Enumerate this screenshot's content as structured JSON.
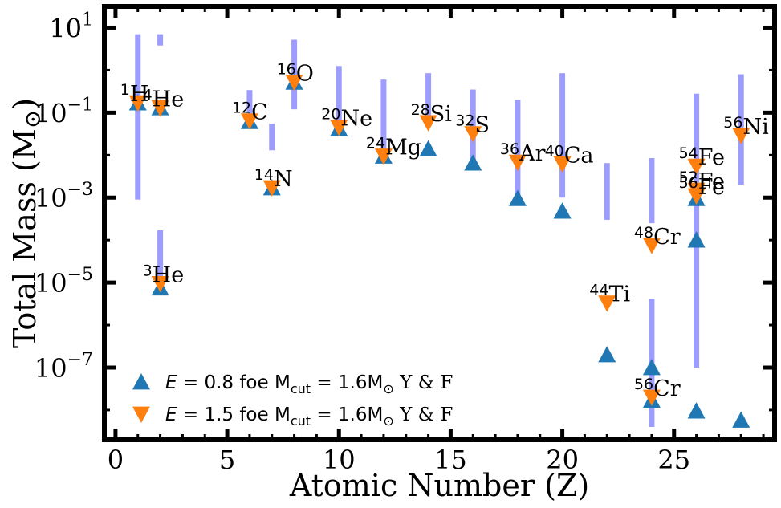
{
  "chart_data": {
    "type": "scatter",
    "xlabel": "Atomic Number (Z)",
    "ylabel": "Total Mass (M",
    "ylabel_symbol": "⊙",
    "ylabel_close": ")",
    "xlim": [
      -0.5,
      29.5
    ],
    "ylim_log10": [
      -8.7,
      1.5
    ],
    "yscale": "log",
    "x_ticks": [
      0,
      5,
      10,
      15,
      20,
      25
    ],
    "x_tick_labels": [
      "0",
      "5",
      "10",
      "15",
      "20",
      "25"
    ],
    "y_ticks_log10": [
      1,
      -1,
      -3,
      -5,
      -7
    ],
    "y_tick_labels": [
      {
        "base": "10",
        "exp": "1"
      },
      {
        "base": "10",
        "exp": "−1"
      },
      {
        "base": "10",
        "exp": "−3"
      },
      {
        "base": "10",
        "exp": "−5"
      },
      {
        "base": "10",
        "exp": "−7"
      }
    ],
    "series": [
      {
        "name_prefix": "E",
        "name_value": " = 0.8 foe M",
        "name_sub": "cut",
        "name_mid": " = 1.6M",
        "name_sub2": "⊙",
        "name_suffix": " Y & F",
        "marker": "triangle-up",
        "color": "#1f77b4",
        "points": [
          {
            "x": 1,
            "y": 0.17
          },
          {
            "x": 2,
            "y": 0.13
          },
          {
            "x": 2,
            "y": 7.5e-06
          },
          {
            "x": 6,
            "y": 0.062
          },
          {
            "x": 7,
            "y": 0.0017
          },
          {
            "x": 8,
            "y": 0.52
          },
          {
            "x": 10,
            "y": 0.042
          },
          {
            "x": 12,
            "y": 0.0095
          },
          {
            "x": 14,
            "y": 0.014
          },
          {
            "x": 16,
            "y": 0.0065
          },
          {
            "x": 18,
            "y": 0.00095
          },
          {
            "x": 20,
            "y": 0.00048
          },
          {
            "x": 22,
            "y": 2e-07
          },
          {
            "x": 24,
            "y": 1e-07
          },
          {
            "x": 24,
            "y": 1.7e-08
          },
          {
            "x": 26,
            "y": 0.00095
          },
          {
            "x": 26,
            "y": 0.0001
          },
          {
            "x": 26,
            "y": 9.5e-09
          },
          {
            "x": 28,
            "y": 5.8e-09
          }
        ]
      },
      {
        "name_prefix": "E",
        "name_value": " = 1.5 foe M",
        "name_sub": "cut",
        "name_mid": " = 1.6M",
        "name_sub2": "⊙",
        "name_suffix": " Y & F",
        "marker": "triangle-down",
        "color": "#ff7f0e",
        "points": [
          {
            "x": 1,
            "y": 0.17
          },
          {
            "x": 2,
            "y": 0.13
          },
          {
            "x": 2,
            "y": 9.5e-06
          },
          {
            "x": 6,
            "y": 0.064
          },
          {
            "x": 7,
            "y": 0.0017
          },
          {
            "x": 8,
            "y": 0.52
          },
          {
            "x": 10,
            "y": 0.045
          },
          {
            "x": 12,
            "y": 0.0095
          },
          {
            "x": 14,
            "y": 0.058
          },
          {
            "x": 16,
            "y": 0.032
          },
          {
            "x": 18,
            "y": 0.0068
          },
          {
            "x": 20,
            "y": 0.0062
          },
          {
            "x": 22,
            "y": 3.3e-06
          },
          {
            "x": 24,
            "y": 7.5e-05
          },
          {
            "x": 24,
            "y": 2e-08
          },
          {
            "x": 26,
            "y": 0.0055
          },
          {
            "x": 26,
            "y": 0.0015
          },
          {
            "x": 26,
            "y": 0.0011
          },
          {
            "x": 28,
            "y": 0.029
          }
        ]
      }
    ],
    "ranges": [
      {
        "x": 1,
        "low": 0.0009,
        "high": 7
      },
      {
        "x": 2,
        "low": 3.8,
        "high": 7
      },
      {
        "x": 2,
        "low": 9.5e-06,
        "high": 0.00017
      },
      {
        "x": 6,
        "low": 0.055,
        "high": 0.34
      },
      {
        "x": 7,
        "low": 0.013,
        "high": 0.055
      },
      {
        "x": 8,
        "low": 0.12,
        "high": 5.2
      },
      {
        "x": 10,
        "low": 0.04,
        "high": 1.25
      },
      {
        "x": 12,
        "low": 0.009,
        "high": 0.6
      },
      {
        "x": 14,
        "low": 0.055,
        "high": 0.85
      },
      {
        "x": 16,
        "low": 0.0065,
        "high": 0.35
      },
      {
        "x": 18,
        "low": 0.0009,
        "high": 0.2
      },
      {
        "x": 20,
        "low": 0.001,
        "high": 0.85
      },
      {
        "x": 22,
        "low": 0.0003,
        "high": 0.0065
      },
      {
        "x": 24,
        "low": 0.00025,
        "high": 0.0085
      },
      {
        "x": 24,
        "low": 4e-09,
        "high": 4.2e-06
      },
      {
        "x": 26,
        "low": 0.0009,
        "high": 0.28
      },
      {
        "x": 26,
        "low": 1e-07,
        "high": 0.0012
      },
      {
        "x": 28,
        "low": 0.002,
        "high": 0.8
      }
    ],
    "annotations": [
      {
        "sup": "1",
        "text": "H",
        "x": 1,
        "y": 0.17
      },
      {
        "sup": "4",
        "text": "He",
        "x": 2,
        "y": 0.13
      },
      {
        "sup": "3",
        "text": "He",
        "x": 2,
        "y": 9.5e-06
      },
      {
        "sup": "12",
        "text": "C",
        "x": 6,
        "y": 0.064
      },
      {
        "sup": "14",
        "text": "N",
        "x": 7,
        "y": 0.0017
      },
      {
        "sup": "16",
        "text": "O",
        "x": 8,
        "y": 0.52
      },
      {
        "sup": "20",
        "text": "Ne",
        "x": 10,
        "y": 0.045
      },
      {
        "sup": "24",
        "text": "Mg",
        "x": 12,
        "y": 0.0095
      },
      {
        "sup": "28",
        "text": "Si",
        "x": 14,
        "y": 0.058
      },
      {
        "sup": "32",
        "text": "S",
        "x": 16,
        "y": 0.032
      },
      {
        "sup": "36",
        "text": "Ar",
        "x": 18,
        "y": 0.0068
      },
      {
        "sup": "40",
        "text": "Ca",
        "x": 20,
        "y": 0.0062
      },
      {
        "sup": "44",
        "text": "Ti",
        "x": 22,
        "y": 3.3e-06
      },
      {
        "sup": "48",
        "text": "Cr",
        "x": 24,
        "y": 7.5e-05
      },
      {
        "sup": "56",
        "text": "Cr",
        "x": 24,
        "y": 2e-08
      },
      {
        "sup": "54",
        "text": "Fe",
        "x": 26,
        "y": 0.0055
      },
      {
        "sup": "52",
        "text": "Fe",
        "x": 26,
        "y": 0.0015
      },
      {
        "sup": "56",
        "text": "Fe",
        "x": 26,
        "y": 0.0011
      },
      {
        "sup": "56",
        "text": "Ni",
        "x": 28,
        "y": 0.029
      }
    ],
    "range_color": "#3b3bff",
    "legend_position": "lower-left",
    "grid": false
  }
}
